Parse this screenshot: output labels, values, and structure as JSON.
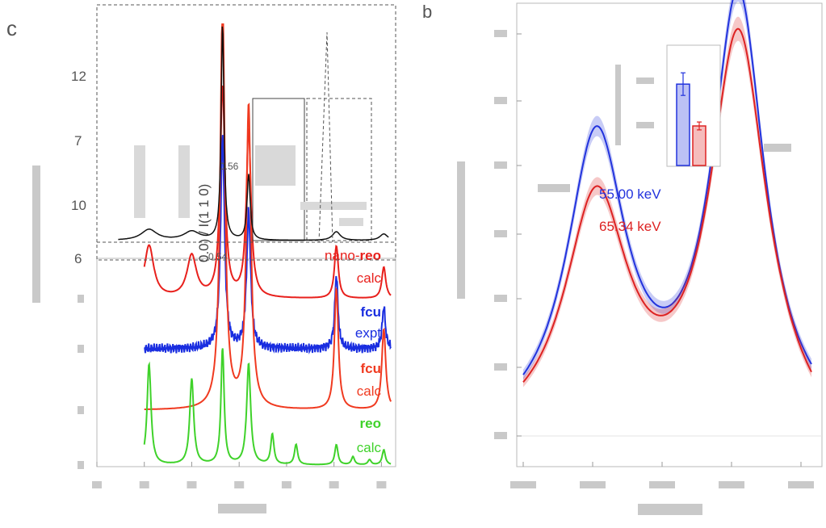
{
  "panels": {
    "a": {
      "letter": "c"
    },
    "b": {
      "letter": "b"
    }
  },
  "chart_data": [
    {
      "type": "line",
      "series": [
        {
          "name": "nano-reo calc",
          "label_prefix": "nano-",
          "label_bold": "reo",
          "label_sub": "calc",
          "color": "#e8201c",
          "offset": 3,
          "peaks": [
            [
              1.1,
              0.25,
              0.12
            ],
            [
              2.0,
              0.2,
              0.12
            ],
            [
              2.65,
              1.0,
              0.06
            ],
            [
              3.2,
              0.8,
              0.06
            ],
            [
              5.05,
              0.25,
              0.05
            ],
            [
              6.05,
              0.15,
              0.05
            ]
          ]
        },
        {
          "name": "fcu expt",
          "label_prefix": "",
          "label_bold": "fcu",
          "label_sub": "expt",
          "color": "#1a2ee0",
          "offset": 2,
          "peaks": [
            [
              2.65,
              1.0,
              0.05
            ],
            [
              3.2,
              0.65,
              0.05
            ],
            [
              5.05,
              0.35,
              0.04
            ],
            [
              6.05,
              0.2,
              0.04
            ]
          ]
        },
        {
          "name": "fcu calc",
          "label_prefix": "",
          "label_bold": "fcu",
          "label_sub": "calc",
          "color": "#f03a20",
          "offset": 1,
          "peaks": [
            [
              2.65,
              1.0,
              0.06
            ],
            [
              3.2,
              0.75,
              0.06
            ],
            [
              5.05,
              0.3,
              0.05
            ],
            [
              6.05,
              0.2,
              0.05
            ]
          ]
        },
        {
          "name": "reo calc",
          "label_prefix": "",
          "label_bold": "reo",
          "label_sub": "calc",
          "color": "#3fd22a",
          "offset": 0,
          "peaks": [
            [
              1.1,
              1.0,
              0.05
            ],
            [
              2.0,
              0.85,
              0.05
            ],
            [
              2.65,
              1.15,
              0.04
            ],
            [
              3.2,
              1.0,
              0.05
            ],
            [
              3.7,
              0.3,
              0.04
            ],
            [
              4.2,
              0.2,
              0.04
            ],
            [
              5.05,
              0.2,
              0.04
            ],
            [
              5.4,
              0.08,
              0.04
            ],
            [
              5.75,
              0.05,
              0.04
            ],
            [
              6.05,
              0.15,
              0.04
            ]
          ]
        }
      ],
      "inset": {
        "ticks": [
          "12",
          "7",
          "10",
          "6"
        ],
        "axis_label": "0.0) / I(1 1 0)",
        "annot_top": "0.56",
        "annot_bottom": "0.54"
      }
    },
    {
      "type": "line",
      "series": [
        {
          "name": "55.00 keV",
          "color": "#2233dd",
          "peaks": [
            [
              -0.16,
              0.78,
              0.085
            ],
            [
              0.17,
              1.15,
              0.075
            ]
          ]
        },
        {
          "name": "65.34 keV",
          "color": "#dd2222",
          "peaks": [
            [
              -0.16,
              0.62,
              0.09
            ],
            [
              0.17,
              1.05,
              0.08
            ]
          ]
        }
      ],
      "inset": {
        "bars": [
          {
            "series": "55.00 keV",
            "value": 0.72,
            "err": 0.2,
            "color": "#2233dd"
          },
          {
            "series": "65.34 keV",
            "value": 0.35,
            "err": 0.07,
            "color": "#dd2222"
          }
        ]
      }
    }
  ]
}
